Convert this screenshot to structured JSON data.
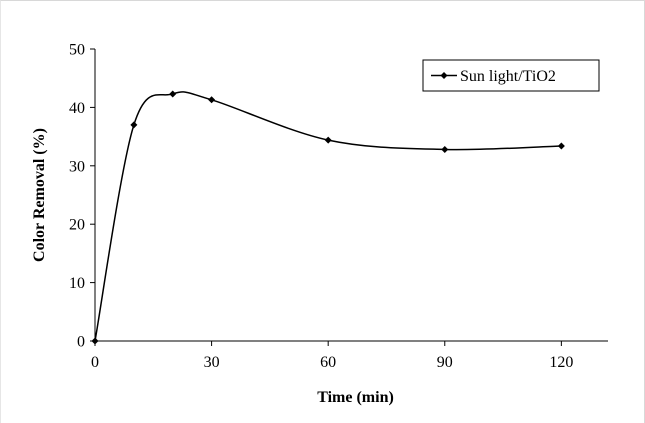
{
  "chart_data": {
    "type": "line",
    "title": "",
    "xlabel": "Time (min)",
    "ylabel": "Color Removal (%)",
    "xlim": [
      0,
      132
    ],
    "ylim": [
      0,
      50
    ],
    "xticks": [
      0,
      30,
      60,
      90,
      120
    ],
    "yticks": [
      0,
      10,
      20,
      30,
      40,
      50
    ],
    "grid": false,
    "legend_position": "top-right",
    "series": [
      {
        "name": "Sun light/TiO2",
        "color": "#000000",
        "marker": "diamond",
        "smooth": true,
        "x": [
          0,
          10,
          20,
          30,
          60,
          90,
          120
        ],
        "y": [
          0,
          37.0,
          42.3,
          41.3,
          34.4,
          32.8,
          33.4
        ]
      }
    ]
  }
}
